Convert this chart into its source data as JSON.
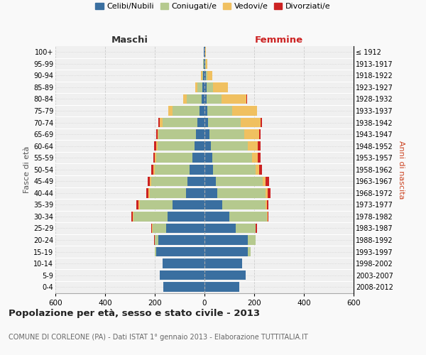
{
  "age_groups": [
    "0-4",
    "5-9",
    "10-14",
    "15-19",
    "20-24",
    "25-29",
    "30-34",
    "35-39",
    "40-44",
    "45-49",
    "50-54",
    "55-59",
    "60-64",
    "65-69",
    "70-74",
    "75-79",
    "80-84",
    "85-89",
    "90-94",
    "95-99",
    "100+"
  ],
  "birth_years": [
    "2008-2012",
    "2003-2007",
    "1998-2002",
    "1993-1997",
    "1988-1992",
    "1983-1987",
    "1978-1982",
    "1973-1977",
    "1968-1972",
    "1963-1967",
    "1958-1962",
    "1953-1957",
    "1948-1952",
    "1943-1947",
    "1938-1942",
    "1933-1937",
    "1928-1932",
    "1923-1927",
    "1918-1922",
    "1913-1917",
    "≤ 1912"
  ],
  "male": {
    "celibi": [
      165,
      180,
      170,
      195,
      185,
      155,
      150,
      130,
      75,
      70,
      60,
      50,
      40,
      35,
      30,
      20,
      12,
      8,
      5,
      3,
      2
    ],
    "coniugati": [
      0,
      0,
      0,
      5,
      15,
      55,
      135,
      130,
      145,
      145,
      140,
      145,
      150,
      150,
      140,
      110,
      60,
      20,
      5,
      2,
      1
    ],
    "vedovi": [
      0,
      0,
      0,
      0,
      1,
      2,
      3,
      5,
      5,
      5,
      5,
      5,
      5,
      5,
      10,
      15,
      15,
      10,
      3,
      1,
      0
    ],
    "divorziati": [
      0,
      0,
      0,
      0,
      1,
      3,
      5,
      8,
      10,
      10,
      8,
      7,
      7,
      5,
      5,
      2,
      0,
      0,
      0,
      0,
      0
    ]
  },
  "female": {
    "nubili": [
      140,
      165,
      150,
      175,
      175,
      125,
      100,
      70,
      50,
      45,
      35,
      30,
      25,
      20,
      15,
      10,
      8,
      8,
      5,
      3,
      2
    ],
    "coniugate": [
      0,
      0,
      0,
      10,
      30,
      80,
      150,
      175,
      195,
      190,
      170,
      160,
      150,
      140,
      130,
      100,
      60,
      25,
      5,
      2,
      1
    ],
    "vedove": [
      0,
      0,
      0,
      0,
      1,
      2,
      3,
      5,
      8,
      10,
      15,
      25,
      40,
      60,
      80,
      100,
      100,
      60,
      20,
      5,
      2
    ],
    "divorziate": [
      0,
      0,
      0,
      0,
      1,
      3,
      5,
      8,
      12,
      15,
      12,
      10,
      10,
      5,
      5,
      2,
      2,
      0,
      0,
      0,
      0
    ]
  },
  "colors": {
    "celibi": "#3a6fa0",
    "coniugati": "#b5c98e",
    "vedovi": "#f0c060",
    "divorziati": "#cc2222"
  },
  "legend_labels": [
    "Celibi/Nubili",
    "Coniugati/e",
    "Vedovi/e",
    "Divorziati/e"
  ],
  "title": "Popolazione per età, sesso e stato civile - 2013",
  "subtitle": "COMUNE DI CORLEONE (PA) - Dati ISTAT 1° gennaio 2013 - Elaborazione TUTTITALIA.IT",
  "xlabel_left": "Maschi",
  "xlabel_right": "Femmine",
  "ylabel_left": "Fasce di età",
  "ylabel_right": "Anni di nascita",
  "xlim": 600,
  "bg_color": "#f9f9f9",
  "plot_bg_color": "#f0f0f0"
}
